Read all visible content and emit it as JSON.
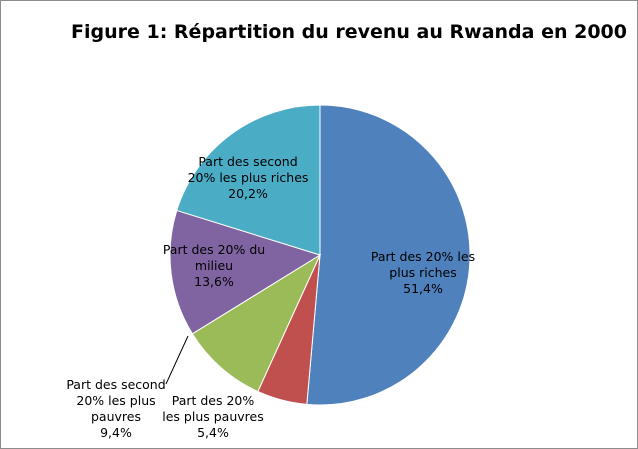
{
  "chart_data": {
    "type": "pie",
    "title": "Figure 1: Répartition du revenu au Rwanda en 2000",
    "slices": [
      {
        "label": [
          "Part des 20% les",
          "plus riches"
        ],
        "value": 51.4,
        "value_label": "51,4%",
        "color": "#4f81bd"
      },
      {
        "label": [
          "Part des 20%",
          "les plus pauvres"
        ],
        "value": 5.4,
        "value_label": "5,4%",
        "color": "#c0504d"
      },
      {
        "label": [
          "Part des second",
          "20% les plus",
          "pauvres"
        ],
        "value": 9.4,
        "value_label": "9,4%",
        "color": "#9bbb59"
      },
      {
        "label": [
          "Part des 20% du",
          "milieu"
        ],
        "value": 13.6,
        "value_label": "13,6%",
        "color": "#8064a2"
      },
      {
        "label": [
          "Part des second",
          "20% les plus riches"
        ],
        "value": 20.2,
        "value_label": "20,2%",
        "color": "#4bacc6"
      }
    ]
  }
}
